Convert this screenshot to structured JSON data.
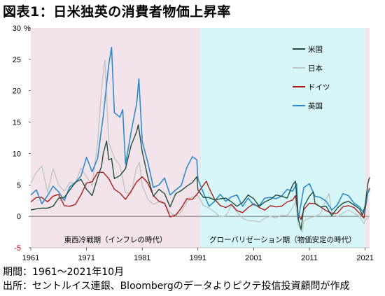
{
  "title": "図表1：日米独英の消費者物価上昇率",
  "footer": {
    "period": "期間：1961～2021年10月",
    "source": "出所：セントルイス連銀、Bloombergのデータよりピクテ投信投資顧問が作成"
  },
  "chart_data": {
    "type": "line",
    "title": "図表1：日米独英の消費者物価上昇率",
    "ylabel_unit": "%",
    "xlim": [
      1961,
      2021.8
    ],
    "ylim": [
      -5,
      30
    ],
    "x_ticks": [
      1961,
      1971,
      1981,
      1991,
      2001,
      2011,
      2021
    ],
    "y_ticks": [
      -5,
      0,
      5,
      10,
      15,
      20,
      25,
      30
    ],
    "legend_position": "right",
    "regions": [
      {
        "label": "東西冷戦期（インフレの時代）",
        "from": 1961,
        "to": 1991.4,
        "color": "#f2e4ea"
      },
      {
        "label": "グローバリゼーション期（物価安定の時代）",
        "from": 1991.4,
        "to": 2021.0,
        "color": "#d7f6f7"
      },
      {
        "label": "",
        "from": 2021.0,
        "to": 2021.8,
        "color": "#f2e4ea"
      }
    ],
    "series": [
      {
        "name": "米国",
        "color": "#1f4e3d",
        "width": 1.4,
        "points": [
          [
            1961,
            1.0
          ],
          [
            1962,
            1.2
          ],
          [
            1963,
            1.3
          ],
          [
            1964,
            1.3
          ],
          [
            1965,
            1.6
          ],
          [
            1966,
            2.9
          ],
          [
            1967,
            3.0
          ],
          [
            1968,
            4.2
          ],
          [
            1969,
            5.4
          ],
          [
            1970,
            5.9
          ],
          [
            1971,
            4.3
          ],
          [
            1972,
            3.3
          ],
          [
            1973,
            6.2
          ],
          [
            1973.7,
            8.0
          ],
          [
            1974,
            10.0
          ],
          [
            1974.6,
            12.0
          ],
          [
            1975,
            9.0
          ],
          [
            1975.5,
            9.2
          ],
          [
            1976,
            6.0
          ],
          [
            1977,
            6.5
          ],
          [
            1978,
            7.6
          ],
          [
            1979,
            11.3
          ],
          [
            1980,
            13.5
          ],
          [
            1980.3,
            14.6
          ],
          [
            1981,
            10.3
          ],
          [
            1982,
            6.2
          ],
          [
            1983,
            3.2
          ],
          [
            1984,
            4.3
          ],
          [
            1985,
            3.6
          ],
          [
            1986,
            1.5
          ],
          [
            1987,
            3.6
          ],
          [
            1988,
            4.1
          ],
          [
            1989,
            4.8
          ],
          [
            1990,
            5.4
          ],
          [
            1990.8,
            6.3
          ],
          [
            1991,
            4.2
          ],
          [
            1992,
            3.0
          ],
          [
            1993,
            3.0
          ],
          [
            1994,
            2.6
          ],
          [
            1995,
            2.8
          ],
          [
            1996,
            2.9
          ],
          [
            1997,
            2.3
          ],
          [
            1998,
            1.6
          ],
          [
            1999,
            2.2
          ],
          [
            2000,
            3.4
          ],
          [
            2001,
            2.8
          ],
          [
            2002,
            1.6
          ],
          [
            2003,
            2.3
          ],
          [
            2004,
            2.7
          ],
          [
            2005,
            3.4
          ],
          [
            2006,
            3.2
          ],
          [
            2007,
            2.9
          ],
          [
            2008,
            5.0
          ],
          [
            2008.5,
            5.6
          ],
          [
            2009,
            -0.4
          ],
          [
            2009.5,
            -2.1
          ],
          [
            2010,
            1.6
          ],
          [
            2011,
            3.2
          ],
          [
            2011.7,
            3.9
          ],
          [
            2012,
            2.1
          ],
          [
            2013,
            1.5
          ],
          [
            2014,
            1.6
          ],
          [
            2015,
            0.1
          ],
          [
            2016,
            1.3
          ],
          [
            2017,
            2.1
          ],
          [
            2018,
            2.4
          ],
          [
            2019,
            1.8
          ],
          [
            2020,
            1.2
          ],
          [
            2020.5,
            0.2
          ],
          [
            2021,
            1.7
          ],
          [
            2021.5,
            5.3
          ],
          [
            2021.8,
            6.2
          ]
        ]
      },
      {
        "name": "日本",
        "color": "#bfc6c6",
        "width": 1.4,
        "points": [
          [
            1961,
            5.3
          ],
          [
            1962,
            7.0
          ],
          [
            1963,
            8.0
          ],
          [
            1964,
            3.8
          ],
          [
            1965,
            7.6
          ],
          [
            1966,
            5.0
          ],
          [
            1967,
            4.0
          ],
          [
            1968,
            5.4
          ],
          [
            1969,
            5.2
          ],
          [
            1970,
            7.7
          ],
          [
            1971,
            6.3
          ],
          [
            1972,
            4.9
          ],
          [
            1973,
            11.7
          ],
          [
            1973.5,
            18.0
          ],
          [
            1974,
            23.0
          ],
          [
            1974.3,
            24.9
          ],
          [
            1975,
            11.8
          ],
          [
            1976,
            9.3
          ],
          [
            1977,
            8.1
          ],
          [
            1978,
            3.8
          ],
          [
            1979,
            3.6
          ],
          [
            1980,
            7.8
          ],
          [
            1980.5,
            8.6
          ],
          [
            1981,
            4.9
          ],
          [
            1982,
            2.7
          ],
          [
            1983,
            1.9
          ],
          [
            1984,
            2.3
          ],
          [
            1985,
            2.0
          ],
          [
            1986,
            0.6
          ],
          [
            1987,
            0.1
          ],
          [
            1988,
            0.7
          ],
          [
            1989,
            2.3
          ],
          [
            1990,
            3.1
          ],
          [
            1991,
            3.3
          ],
          [
            1992,
            1.7
          ],
          [
            1993,
            1.3
          ],
          [
            1994,
            0.7
          ],
          [
            1995,
            -0.1
          ],
          [
            1996,
            0.1
          ],
          [
            1997,
            1.7
          ],
          [
            1998,
            0.7
          ],
          [
            1999,
            -0.3
          ],
          [
            2000,
            -0.7
          ],
          [
            2001,
            -0.7
          ],
          [
            2002,
            -0.9
          ],
          [
            2003,
            -0.3
          ],
          [
            2004,
            0.0
          ],
          [
            2005,
            -0.3
          ],
          [
            2006,
            0.2
          ],
          [
            2007,
            0.1
          ],
          [
            2008,
            1.4
          ],
          [
            2008.5,
            2.3
          ],
          [
            2009,
            -1.4
          ],
          [
            2009.7,
            -2.5
          ],
          [
            2010,
            -0.7
          ],
          [
            2011,
            -0.3
          ],
          [
            2012,
            0.0
          ],
          [
            2013,
            0.4
          ],
          [
            2014,
            2.7
          ],
          [
            2014.5,
            3.6
          ],
          [
            2015,
            0.8
          ],
          [
            2016,
            -0.1
          ],
          [
            2017,
            0.5
          ],
          [
            2018,
            1.0
          ],
          [
            2019,
            0.5
          ],
          [
            2020,
            0.0
          ],
          [
            2020.8,
            -1.2
          ],
          [
            2021,
            -0.6
          ],
          [
            2021.5,
            -0.3
          ],
          [
            2021.8,
            0.1
          ]
        ]
      },
      {
        "name": "ドイツ",
        "color": "#a81a1a",
        "width": 1.4,
        "points": [
          [
            1961,
            2.3
          ],
          [
            1962,
            3.0
          ],
          [
            1963,
            3.0
          ],
          [
            1964,
            2.3
          ],
          [
            1965,
            3.2
          ],
          [
            1966,
            3.5
          ],
          [
            1967,
            1.7
          ],
          [
            1968,
            1.6
          ],
          [
            1969,
            1.9
          ],
          [
            1970,
            3.4
          ],
          [
            1971,
            5.3
          ],
          [
            1972,
            5.5
          ],
          [
            1973,
            7.0
          ],
          [
            1974,
            7.0
          ],
          [
            1975,
            6.0
          ],
          [
            1976,
            4.3
          ],
          [
            1977,
            3.7
          ],
          [
            1978,
            2.7
          ],
          [
            1979,
            4.0
          ],
          [
            1980,
            5.5
          ],
          [
            1981,
            6.3
          ],
          [
            1982,
            5.3
          ],
          [
            1983,
            3.3
          ],
          [
            1984,
            2.4
          ],
          [
            1985,
            2.1
          ],
          [
            1986,
            -0.1
          ],
          [
            1987,
            0.2
          ],
          [
            1988,
            1.3
          ],
          [
            1989,
            2.8
          ],
          [
            1990,
            2.7
          ],
          [
            1991,
            3.7
          ],
          [
            1992,
            5.0
          ],
          [
            1992.5,
            5.6
          ],
          [
            1993,
            4.5
          ],
          [
            1994,
            2.7
          ],
          [
            1995,
            1.7
          ],
          [
            1996,
            1.4
          ],
          [
            1997,
            1.9
          ],
          [
            1998,
            0.9
          ],
          [
            1999,
            0.6
          ],
          [
            2000,
            1.4
          ],
          [
            2001,
            2.0
          ],
          [
            2002,
            1.4
          ],
          [
            2003,
            1.0
          ],
          [
            2004,
            1.7
          ],
          [
            2005,
            1.5
          ],
          [
            2006,
            1.6
          ],
          [
            2007,
            2.3
          ],
          [
            2008,
            2.6
          ],
          [
            2008.5,
            3.3
          ],
          [
            2009,
            0.3
          ],
          [
            2009.5,
            -0.5
          ],
          [
            2010,
            1.1
          ],
          [
            2011,
            2.1
          ],
          [
            2012,
            2.0
          ],
          [
            2013,
            1.5
          ],
          [
            2014,
            0.9
          ],
          [
            2015,
            0.5
          ],
          [
            2016,
            0.5
          ],
          [
            2017,
            1.5
          ],
          [
            2018,
            1.7
          ],
          [
            2019,
            1.4
          ],
          [
            2020,
            0.5
          ],
          [
            2020.8,
            -0.3
          ],
          [
            2021,
            1.0
          ],
          [
            2021.5,
            3.8
          ],
          [
            2021.8,
            4.5
          ]
        ]
      },
      {
        "name": "英国",
        "color": "#2e8bc9",
        "width": 1.6,
        "points": [
          [
            1961,
            3.4
          ],
          [
            1962,
            4.2
          ],
          [
            1963,
            2.0
          ],
          [
            1964,
            3.3
          ],
          [
            1965,
            4.8
          ],
          [
            1966,
            3.9
          ],
          [
            1967,
            2.5
          ],
          [
            1968,
            4.7
          ],
          [
            1969,
            5.4
          ],
          [
            1970,
            6.4
          ],
          [
            1971,
            9.4
          ],
          [
            1972,
            7.1
          ],
          [
            1973,
            9.2
          ],
          [
            1974,
            16.0
          ],
          [
            1975,
            24.2
          ],
          [
            1975.5,
            26.9
          ],
          [
            1976,
            16.5
          ],
          [
            1977,
            15.8
          ],
          [
            1977.5,
            17.0
          ],
          [
            1978,
            8.3
          ],
          [
            1979,
            13.4
          ],
          [
            1980,
            18.0
          ],
          [
            1980.4,
            21.9
          ],
          [
            1981,
            11.9
          ],
          [
            1982,
            8.6
          ],
          [
            1983,
            4.6
          ],
          [
            1984,
            5.0
          ],
          [
            1985,
            6.1
          ],
          [
            1986,
            3.4
          ],
          [
            1987,
            4.2
          ],
          [
            1988,
            4.9
          ],
          [
            1989,
            7.8
          ],
          [
            1990,
            9.5
          ],
          [
            1990.8,
            9.0
          ],
          [
            1991,
            5.9
          ],
          [
            1992,
            3.7
          ],
          [
            1993,
            1.6
          ],
          [
            1994,
            2.4
          ],
          [
            1995,
            3.5
          ],
          [
            1996,
            2.4
          ],
          [
            1997,
            3.1
          ],
          [
            1998,
            3.4
          ],
          [
            1999,
            1.6
          ],
          [
            2000,
            2.9
          ],
          [
            2001,
            1.8
          ],
          [
            2002,
            1.7
          ],
          [
            2003,
            2.9
          ],
          [
            2004,
            3.0
          ],
          [
            2005,
            2.8
          ],
          [
            2006,
            3.2
          ],
          [
            2007,
            4.3
          ],
          [
            2008,
            4.0
          ],
          [
            2008.7,
            5.2
          ],
          [
            2009,
            -0.5
          ],
          [
            2010,
            4.6
          ],
          [
            2011,
            5.2
          ],
          [
            2012,
            3.2
          ],
          [
            2013,
            3.0
          ],
          [
            2014,
            2.4
          ],
          [
            2015,
            1.0
          ],
          [
            2016,
            1.8
          ],
          [
            2017,
            3.6
          ],
          [
            2018,
            3.3
          ],
          [
            2019,
            2.1
          ],
          [
            2020,
            1.5
          ],
          [
            2020.8,
            0.5
          ],
          [
            2021,
            1.5
          ],
          [
            2021.5,
            3.8
          ],
          [
            2021.8,
            4.2
          ]
        ]
      }
    ]
  }
}
